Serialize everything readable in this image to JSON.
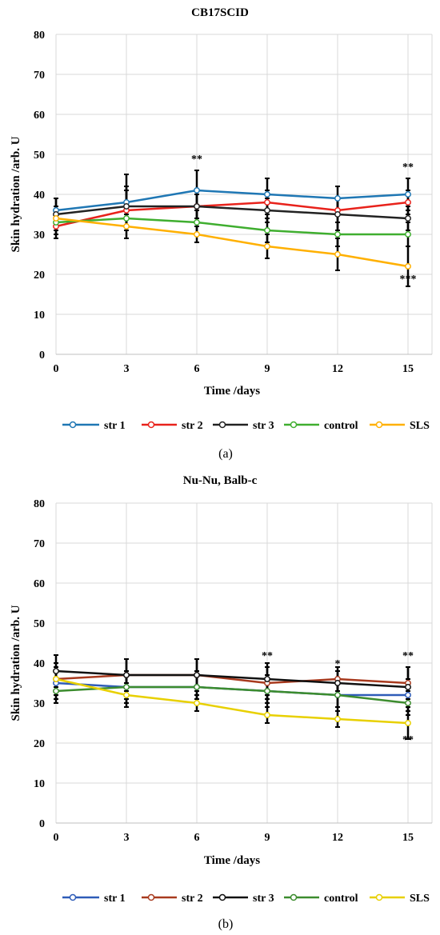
{
  "chart_data": [
    {
      "type": "line",
      "title": "CB17SCID",
      "caption": "(a)",
      "xlabel": "Time /days",
      "ylabel": "Skin hydration /arb. U",
      "x": [
        0,
        3,
        6,
        9,
        12,
        15
      ],
      "xticks": [
        "0",
        "3",
        "6",
        "9",
        "12",
        "15"
      ],
      "yticks": [
        "0",
        "10",
        "20",
        "30",
        "40",
        "50",
        "60",
        "70",
        "80"
      ],
      "ylim": [
        0,
        80
      ],
      "grid": true,
      "legend_position": "bottom",
      "series": [
        {
          "name": "str 1",
          "color": "#1f77b4",
          "values": [
            36,
            38,
            41,
            40,
            39,
            40
          ],
          "err": [
            3,
            7,
            5,
            4,
            3,
            4
          ]
        },
        {
          "name": "str 2",
          "color": "#e8221b",
          "values": [
            32,
            36,
            37,
            38,
            36,
            38
          ],
          "err": [
            3,
            5,
            3,
            3,
            3,
            3
          ]
        },
        {
          "name": "str 3",
          "color": "#222222",
          "values": [
            35,
            37,
            37,
            36,
            35,
            34
          ],
          "err": [
            4,
            5,
            3,
            3,
            4,
            3
          ]
        },
        {
          "name": "control",
          "color": "#3fae2f",
          "values": [
            33,
            34,
            33,
            31,
            30,
            30
          ],
          "err": [
            3,
            3,
            3,
            3,
            3,
            3
          ]
        },
        {
          "name": "SLS",
          "color": "#ffb000",
          "values": [
            34,
            32,
            30,
            27,
            25,
            22
          ],
          "err": [
            3,
            3,
            2,
            3,
            4,
            5
          ]
        }
      ],
      "annotations": [
        {
          "x": 6,
          "y": 48,
          "text": "**"
        },
        {
          "x": 15,
          "y": 46,
          "text": "**"
        },
        {
          "x": 15,
          "y": 18,
          "text": "***"
        }
      ]
    },
    {
      "type": "line",
      "title": "Nu-Nu, Balb-c",
      "caption": "(b)",
      "xlabel": "Time /days",
      "ylabel": "Skin hydration /arb. U",
      "x": [
        0,
        3,
        6,
        9,
        12,
        15
      ],
      "xticks": [
        "0",
        "3",
        "6",
        "9",
        "12",
        "15"
      ],
      "yticks": [
        "0",
        "10",
        "20",
        "30",
        "40",
        "50",
        "60",
        "70",
        "80"
      ],
      "ylim": [
        0,
        80
      ],
      "grid": true,
      "legend_position": "bottom",
      "series": [
        {
          "name": "str 1",
          "color": "#2e5cb8",
          "values": [
            35,
            34,
            34,
            33,
            32,
            32
          ],
          "err": [
            4,
            4,
            4,
            4,
            4,
            4
          ]
        },
        {
          "name": "str 2",
          "color": "#a83a1e",
          "values": [
            36,
            37,
            37,
            35,
            36,
            35
          ],
          "err": [
            4,
            4,
            4,
            4,
            3,
            4
          ]
        },
        {
          "name": "str 3",
          "color": "#111111",
          "values": [
            38,
            37,
            37,
            36,
            35,
            34
          ],
          "err": [
            4,
            4,
            4,
            4,
            3,
            5
          ]
        },
        {
          "name": "control",
          "color": "#3c8c2e",
          "values": [
            33,
            34,
            34,
            33,
            32,
            30
          ],
          "err": [
            3,
            3,
            3,
            3,
            3,
            3
          ]
        },
        {
          "name": "SLS",
          "color": "#e8d000",
          "values": [
            36,
            32,
            30,
            27,
            26,
            25
          ],
          "err": [
            3,
            3,
            2,
            2,
            2,
            4
          ]
        }
      ],
      "annotations": [
        {
          "x": 9,
          "y": 41,
          "text": "**"
        },
        {
          "x": 12,
          "y": 39,
          "text": "*"
        },
        {
          "x": 15,
          "y": 41,
          "text": "**"
        },
        {
          "x": 15,
          "y": 20,
          "text": "**"
        }
      ]
    }
  ]
}
